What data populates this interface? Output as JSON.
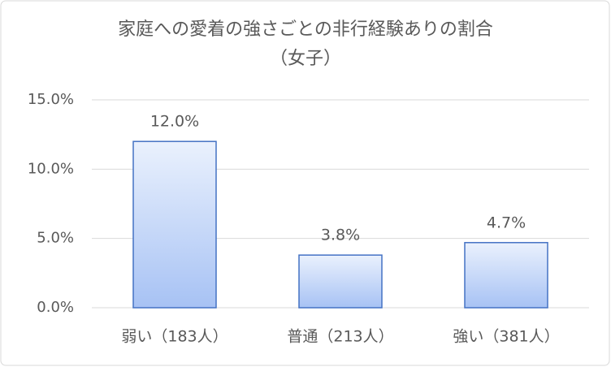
{
  "chart_data": {
    "type": "bar",
    "title": "家庭への愛着の強さごとの非行経験ありの割合",
    "subtitle": "（女子）",
    "categories": [
      "弱い（183人）",
      "普通（213人）",
      "強い（381人）"
    ],
    "values": [
      12.0,
      3.8,
      4.7
    ],
    "value_labels": [
      "12.0%",
      "3.8%",
      "4.7%"
    ],
    "color": "#4472c4",
    "ylim": [
      0,
      15
    ],
    "yticks": [
      {
        "value": 0,
        "label": "0.0%"
      },
      {
        "value": 5,
        "label": "5.0%"
      },
      {
        "value": 10,
        "label": "10.0%"
      },
      {
        "value": 15,
        "label": "15.0%"
      }
    ],
    "grid": true
  }
}
